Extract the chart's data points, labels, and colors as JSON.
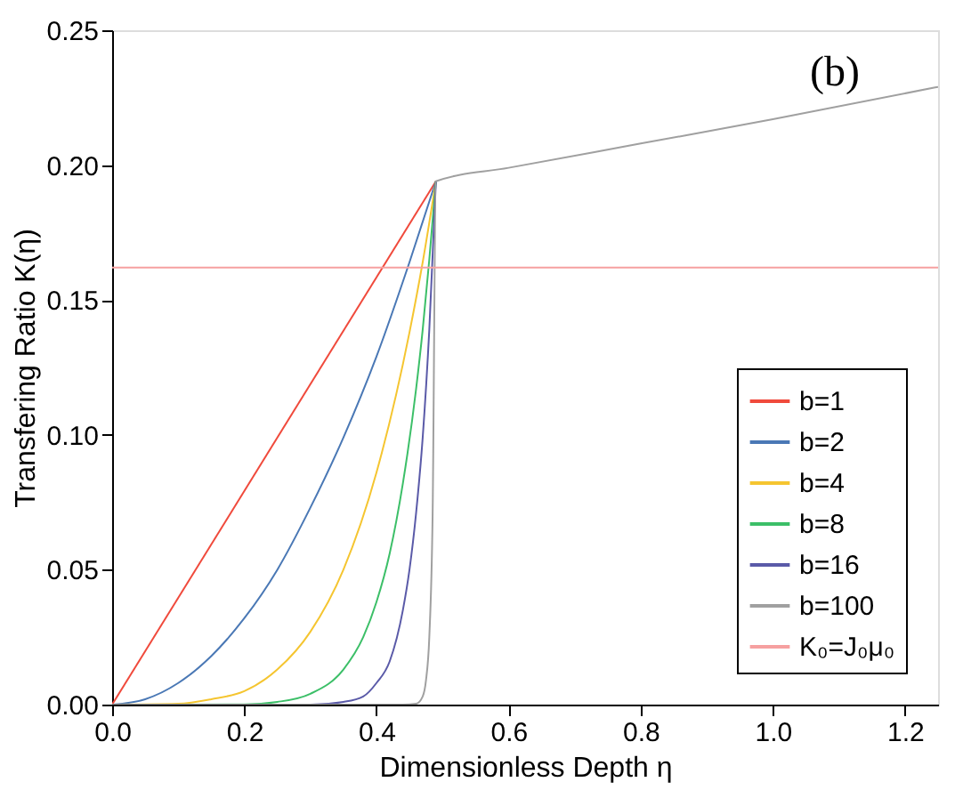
{
  "chart_data": {
    "type": "line",
    "xlabel": "Dimensionless Depth η",
    "ylabel": "Transfering Ratio K(η)",
    "annotations": [
      "(b)"
    ],
    "xlim": [
      0,
      1.25
    ],
    "ylim": [
      0,
      0.25
    ],
    "xticks": [
      {
        "value": 0,
        "label": "0.0"
      },
      {
        "value": 0.2,
        "label": "0.2"
      },
      {
        "value": 0.4,
        "label": "0.4"
      },
      {
        "value": 0.6,
        "label": "0.6"
      },
      {
        "value": 0.8,
        "label": "0.8"
      },
      {
        "value": 1.0,
        "label": "1.0"
      },
      {
        "value": 1.2,
        "label": "1.2"
      }
    ],
    "yticks": [
      {
        "value": 0,
        "label": "0.00"
      },
      {
        "value": 0.05,
        "label": "0.05"
      },
      {
        "value": 0.1,
        "label": "0.10"
      },
      {
        "value": 0.15,
        "label": "0.15"
      },
      {
        "value": 0.2,
        "label": "0.20"
      },
      {
        "value": 0.25,
        "label": "0.25"
      }
    ],
    "grid": false,
    "legend": "bottom right",
    "marker": "none",
    "line_style": "solid",
    "series": [
      {
        "name": "b=1",
        "color": "#f04a3c",
        "x": [
          0,
          0.49
        ],
        "values": [
          0,
          0.194
        ]
      },
      {
        "name": "b=2",
        "color": "#4a78b5",
        "x": [
          0,
          0.05,
          0.1,
          0.15,
          0.2,
          0.25,
          0.3,
          0.35,
          0.4,
          0.45,
          0.49
        ],
        "values": [
          0,
          0.002,
          0.008,
          0.018,
          0.032,
          0.05,
          0.073,
          0.099,
          0.129,
          0.164,
          0.194
        ]
      },
      {
        "name": "b=4",
        "color": "#f5c530",
        "x": [
          0,
          0.1,
          0.15,
          0.2,
          0.25,
          0.3,
          0.35,
          0.4,
          0.45,
          0.47,
          0.49
        ],
        "values": [
          0,
          0.0003,
          0.002,
          0.005,
          0.013,
          0.027,
          0.05,
          0.086,
          0.138,
          0.164,
          0.194
        ]
      },
      {
        "name": "b=8",
        "color": "#3cbf68",
        "x": [
          0,
          0.2,
          0.25,
          0.3,
          0.35,
          0.38,
          0.4,
          0.42,
          0.44,
          0.46,
          0.47,
          0.48,
          0.49
        ],
        "values": [
          0,
          0.0001,
          0.001,
          0.004,
          0.013,
          0.025,
          0.038,
          0.056,
          0.082,
          0.117,
          0.139,
          0.165,
          0.194
        ]
      },
      {
        "name": "b=16",
        "color": "#5a5aa8",
        "x": [
          0,
          0.3,
          0.35,
          0.38,
          0.4,
          0.42,
          0.44,
          0.45,
          0.46,
          0.47,
          0.48,
          0.49
        ],
        "values": [
          0,
          0,
          0.001,
          0.003,
          0.008,
          0.016,
          0.035,
          0.05,
          0.071,
          0.099,
          0.139,
          0.194
        ]
      },
      {
        "name": "b=100",
        "color": "#a0a0a0",
        "x": [
          0,
          0.44,
          0.46,
          0.47,
          0.475,
          0.48,
          0.485,
          0.49,
          0.6,
          0.8,
          1.0,
          1.25
        ],
        "values": [
          0,
          0,
          0.0003,
          0.003,
          0.009,
          0.025,
          0.07,
          0.194,
          0.199,
          0.208,
          0.217,
          0.229
        ]
      },
      {
        "name": "K₀=J₀μ₀",
        "color": "#f6a0a0",
        "x": [
          0,
          1.25
        ],
        "values": [
          0.162,
          0.162
        ]
      }
    ]
  }
}
